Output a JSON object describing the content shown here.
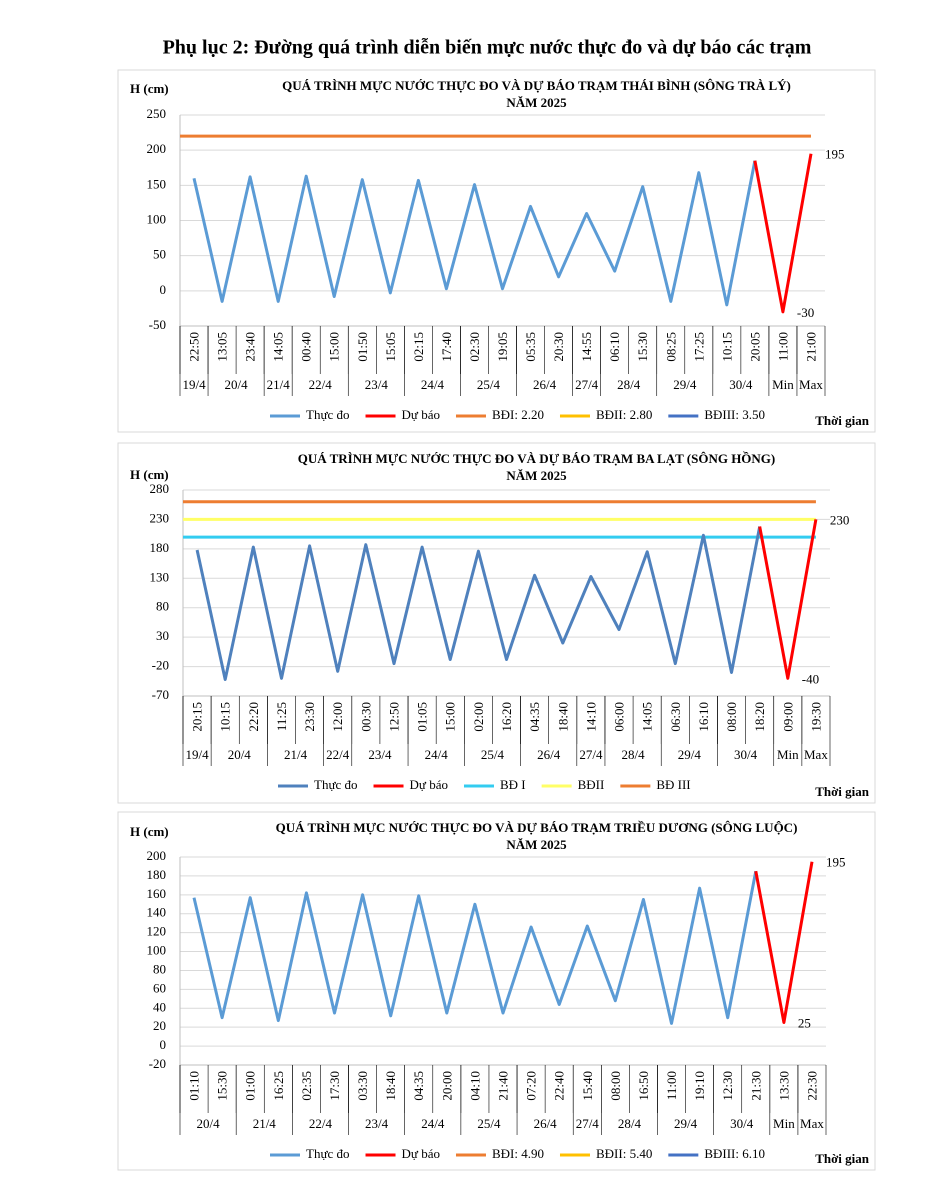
{
  "page_title": "Phụ lục 2: Đường quá trình diễn biến mực nước thực đo và dự báo các trạm",
  "chart_data": [
    {
      "type": "line",
      "title": "QUÁ TRÌNH MỰC NƯỚC THỰC ĐO VÀ DỰ BÁO TRẠM THÁI BÌNH (SÔNG TRÀ LÝ)",
      "subtitle": "NĂM 2025",
      "y_label": "H (cm)",
      "x_label": "Thời gian",
      "categories": [
        "22:50",
        "13:05",
        "23:40",
        "14:05",
        "00:40",
        "15:00",
        "01:50",
        "15:05",
        "02:15",
        "17:40",
        "02:30",
        "19:05",
        "05:35",
        "20:30",
        "14:55",
        "06:10",
        "15:30",
        "08:25",
        "17:25",
        "10:15",
        "20:05",
        "11:00",
        "21:00"
      ],
      "date_groups": [
        {
          "label": "19/4",
          "size": 1
        },
        {
          "label": "20/4",
          "size": 2
        },
        {
          "label": "21/4",
          "size": 1
        },
        {
          "label": "22/4",
          "size": 2
        },
        {
          "label": "23/4",
          "size": 2
        },
        {
          "label": "24/4",
          "size": 2
        },
        {
          "label": "25/4",
          "size": 2
        },
        {
          "label": "26/4",
          "size": 2
        },
        {
          "label": "27/4",
          "size": 1
        },
        {
          "label": "28/4",
          "size": 2
        },
        {
          "label": "29/4",
          "size": 2
        },
        {
          "label": "30/4",
          "size": 2
        },
        {
          "label": "Min",
          "size": 1
        },
        {
          "label": "Max",
          "size": 1
        }
      ],
      "ylim": [
        -50,
        250
      ],
      "yticks": [
        -50,
        0,
        50,
        100,
        150,
        200,
        250
      ],
      "grid": true,
      "series": [
        {
          "name": "Thực đo",
          "color": "#5b9bd5",
          "values": [
            160,
            -15,
            162,
            -15,
            163,
            -8,
            158,
            -3,
            157,
            3,
            151,
            3,
            120,
            20,
            110,
            28,
            148,
            -15,
            168,
            -20,
            185,
            null,
            null
          ]
        },
        {
          "name": "Dự báo",
          "color": "#ff0000",
          "values": [
            null,
            null,
            null,
            null,
            null,
            null,
            null,
            null,
            null,
            null,
            null,
            null,
            null,
            null,
            null,
            null,
            null,
            null,
            null,
            null,
            185,
            -30,
            195
          ],
          "value_labels": [
            null,
            null,
            null,
            null,
            null,
            null,
            null,
            null,
            null,
            null,
            null,
            null,
            null,
            null,
            null,
            null,
            null,
            null,
            null,
            null,
            null,
            "-30",
            "195"
          ]
        }
      ],
      "reference_lines": [
        {
          "name": "BĐI: 2.20",
          "color": "#ed7d31",
          "value": 220
        },
        {
          "name": "BĐII: 2.80",
          "color": "#ffc000"
        },
        {
          "name": "BĐIII: 3.50",
          "color": "#4472c4"
        }
      ]
    },
    {
      "type": "line",
      "title": "QUÁ TRÌNH MỰC NƯỚC THỰC ĐO VÀ DỰ BÁO TRẠM BA LẠT (SÔNG HỒNG)",
      "subtitle": "NĂM 2025",
      "y_label": "H (cm)",
      "x_label": "Thời gian",
      "categories": [
        "20:15",
        "10:15",
        "22:20",
        "11:25",
        "23:30",
        "12:00",
        "00:30",
        "12:50",
        "01:05",
        "15:00",
        "02:00",
        "16:20",
        "04:35",
        "18:40",
        "14:10",
        "06:00",
        "14:05",
        "06:30",
        "16:10",
        "08:00",
        "18:20",
        "09:00",
        "19:30"
      ],
      "date_groups": [
        {
          "label": "19/4",
          "size": 1
        },
        {
          "label": "20/4",
          "size": 2
        },
        {
          "label": "21/4",
          "size": 2
        },
        {
          "label": "22/4",
          "size": 1
        },
        {
          "label": "23/4",
          "size": 2
        },
        {
          "label": "24/4",
          "size": 2
        },
        {
          "label": "25/4",
          "size": 2
        },
        {
          "label": "26/4",
          "size": 2
        },
        {
          "label": "27/4",
          "size": 1
        },
        {
          "label": "28/4",
          "size": 2
        },
        {
          "label": "29/4",
          "size": 2
        },
        {
          "label": "30/4",
          "size": 2
        },
        {
          "label": "Min",
          "size": 1
        },
        {
          "label": "Max",
          "size": 1
        }
      ],
      "ylim": [
        -70,
        280
      ],
      "yticks": [
        -70,
        -20,
        30,
        80,
        130,
        180,
        230,
        280
      ],
      "grid": true,
      "series": [
        {
          "name": "Thực đo",
          "color": "#4f81bd",
          "values": [
            178,
            -42,
            183,
            -40,
            185,
            -28,
            187,
            -15,
            183,
            -8,
            176,
            -8,
            135,
            20,
            133,
            43,
            175,
            -15,
            203,
            -30,
            218,
            null,
            null
          ]
        },
        {
          "name": "Dự báo",
          "color": "#ff0000",
          "values": [
            null,
            null,
            null,
            null,
            null,
            null,
            null,
            null,
            null,
            null,
            null,
            null,
            null,
            null,
            null,
            null,
            null,
            null,
            null,
            null,
            218,
            -40,
            230
          ],
          "value_labels": [
            null,
            null,
            null,
            null,
            null,
            null,
            null,
            null,
            null,
            null,
            null,
            null,
            null,
            null,
            null,
            null,
            null,
            null,
            null,
            null,
            null,
            "-40",
            "230"
          ]
        }
      ],
      "reference_lines": [
        {
          "name": "BĐ I",
          "color": "#33ccf0",
          "value": 200
        },
        {
          "name": "BĐII",
          "color": "#ffff66",
          "value": 230
        },
        {
          "name": "BĐ III",
          "color": "#ed7d31",
          "value": 260
        }
      ]
    },
    {
      "type": "line",
      "title": "QUÁ TRÌNH MỰC NƯỚC THỰC ĐO VÀ DỰ BÁO TRẠM TRIỀU DƯƠNG  (SÔNG LUỘC)",
      "subtitle": "NĂM 2025",
      "y_label": "H (cm)",
      "x_label": "Thời gian",
      "categories": [
        "01:10",
        "15:30",
        "01:00",
        "16:25",
        "02:35",
        "17:30",
        "03:30",
        "18:40",
        "04:35",
        "20:00",
        "04:10",
        "21:40",
        "07:20",
        "22:40",
        "15:40",
        "08:00",
        "16:50",
        "11:00",
        "19:10",
        "12:30",
        "21:30",
        "13:30",
        "22:30"
      ],
      "date_groups": [
        {
          "label": "20/4",
          "size": 2
        },
        {
          "label": "21/4",
          "size": 2
        },
        {
          "label": "22/4",
          "size": 2
        },
        {
          "label": "23/4",
          "size": 2
        },
        {
          "label": "24/4",
          "size": 2
        },
        {
          "label": "25/4",
          "size": 2
        },
        {
          "label": "26/4",
          "size": 2
        },
        {
          "label": "27/4",
          "size": 1
        },
        {
          "label": "28/4",
          "size": 2
        },
        {
          "label": "29/4",
          "size": 2
        },
        {
          "label": "30/4",
          "size": 2
        },
        {
          "label": "Min",
          "size": 1
        },
        {
          "label": "Max",
          "size": 1
        }
      ],
      "ylim": [
        -20,
        200
      ],
      "yticks": [
        -20,
        0,
        20,
        40,
        60,
        80,
        100,
        120,
        140,
        160,
        180,
        200
      ],
      "grid": true,
      "series": [
        {
          "name": "Thực đo",
          "color": "#5b9bd5",
          "values": [
            157,
            30,
            157,
            27,
            162,
            35,
            160,
            32,
            159,
            35,
            150,
            35,
            126,
            44,
            127,
            48,
            155,
            24,
            167,
            30,
            185,
            null,
            null
          ]
        },
        {
          "name": "Dự báo",
          "color": "#ff0000",
          "values": [
            null,
            null,
            null,
            null,
            null,
            null,
            null,
            null,
            null,
            null,
            null,
            null,
            null,
            null,
            null,
            null,
            null,
            null,
            null,
            null,
            185,
            25,
            195
          ],
          "value_labels": [
            null,
            null,
            null,
            null,
            null,
            null,
            null,
            null,
            null,
            null,
            null,
            null,
            null,
            null,
            null,
            null,
            null,
            null,
            null,
            null,
            null,
            "25",
            "195"
          ]
        }
      ],
      "reference_lines": [
        {
          "name": "BĐI: 4.90",
          "color": "#ed7d31"
        },
        {
          "name": "BĐII: 5.40",
          "color": "#ffc000"
        },
        {
          "name": "BĐIII: 6.10",
          "color": "#4472c4"
        }
      ]
    }
  ]
}
